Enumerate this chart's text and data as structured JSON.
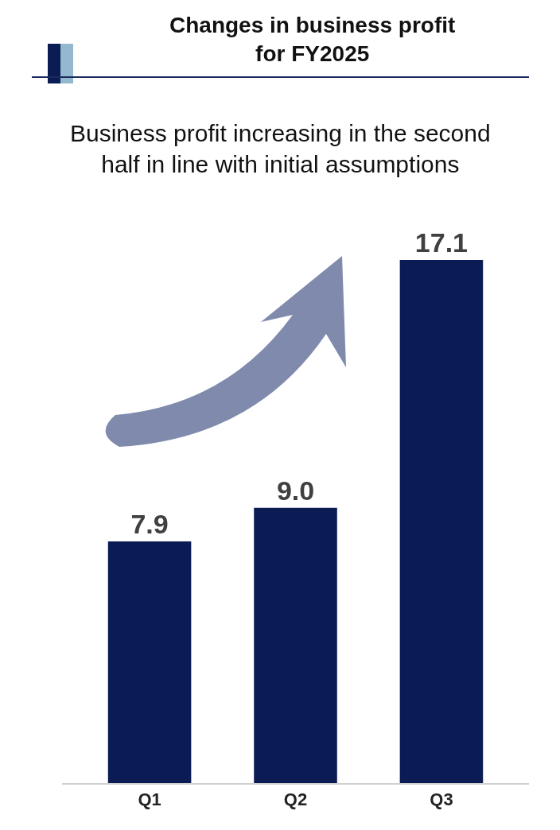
{
  "chart_data": {
    "type": "bar",
    "title": "Changes in business profit\nfor FY2025",
    "subtitle": "Business profit increasing in the second\nhalf in line with initial assumptions",
    "categories": [
      "Q1",
      "Q2",
      "Q3"
    ],
    "values": [
      7.9,
      9.0,
      17.1
    ],
    "color": "#0b1c54",
    "value_labels": [
      "7.9",
      "9.0",
      "17.1"
    ],
    "legend": false
  }
}
